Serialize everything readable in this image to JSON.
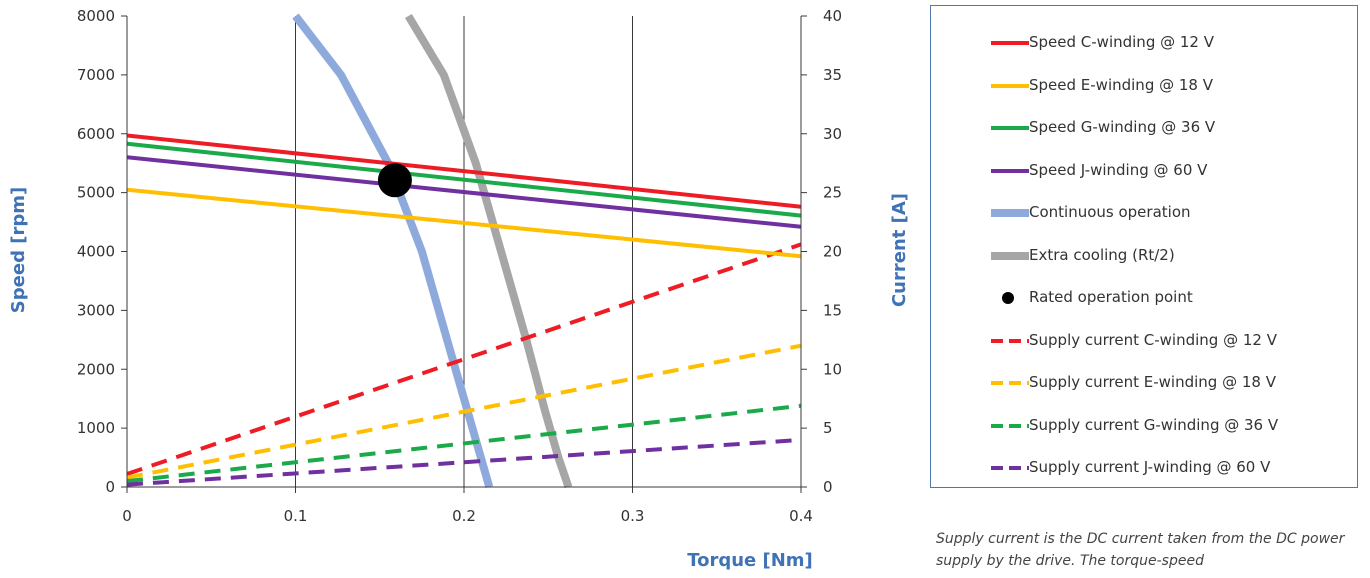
{
  "chart_data": {
    "type": "line",
    "xlabel": "Torque [Nm]",
    "ylabel": "Speed [rpm]",
    "y2label": "Current [A]",
    "xlim": [
      0,
      0.4
    ],
    "ylim": [
      0,
      8000
    ],
    "y2lim": [
      0,
      40
    ],
    "x_ticks": [
      "0",
      "0.1",
      "0.2",
      "0.3",
      "0.4"
    ],
    "y_ticks": [
      "0",
      "1000",
      "2000",
      "3000",
      "4000",
      "5000",
      "6000",
      "7000",
      "8000"
    ],
    "y2_ticks": [
      "0",
      "5",
      "10",
      "15",
      "20",
      "25",
      "30",
      "35",
      "40"
    ],
    "grid": "vertical",
    "legend_position": "right",
    "series": [
      {
        "name": "Speed C-winding @ 12 V",
        "axis": "left",
        "style": "solid",
        "color": "#ee1c25",
        "x": [
          0,
          0.4
        ],
        "y": [
          5970,
          4760
        ]
      },
      {
        "name": "Speed E-winding @ 18 V",
        "axis": "left",
        "style": "solid",
        "color": "#ffbf00",
        "x": [
          0,
          0.4
        ],
        "y": [
          5050,
          3920
        ]
      },
      {
        "name": "Speed G-winding @ 36 V",
        "axis": "left",
        "style": "solid",
        "color": "#1aaa4a",
        "x": [
          0,
          0.4
        ],
        "y": [
          5830,
          4610
        ]
      },
      {
        "name": "Speed J-winding @ 60 V",
        "axis": "left",
        "style": "solid",
        "color": "#7030a0",
        "x": [
          0,
          0.4
        ],
        "y": [
          5600,
          4420
        ]
      },
      {
        "name": "Continuous operation",
        "axis": "left",
        "style": "thick",
        "color": "#8eaadc",
        "x": [
          0.1,
          0.127,
          0.155,
          0.175,
          0.19,
          0.2,
          0.208,
          0.215
        ],
        "y": [
          8000,
          7000,
          5500,
          4000,
          2500,
          1500,
          700,
          0
        ]
      },
      {
        "name": "Extra cooling (Rt/2)",
        "axis": "left",
        "style": "thick",
        "color": "#a6a6a6",
        "x": [
          0.167,
          0.188,
          0.207,
          0.222,
          0.237,
          0.248,
          0.256,
          0.262
        ],
        "y": [
          8000,
          7000,
          5500,
          4000,
          2500,
          1300,
          500,
          0
        ]
      },
      {
        "name": "Rated operation point",
        "axis": "left",
        "style": "point",
        "color": "#000000",
        "x": [
          0.159
        ],
        "y": [
          5210
        ]
      },
      {
        "name": "Supply current C-winding @ 12 V",
        "axis": "right",
        "style": "dashed",
        "color": "#ee1c25",
        "x": [
          0,
          0.4
        ],
        "y": [
          1.1,
          20.6
        ]
      },
      {
        "name": "Supply current E-winding @ 18 V",
        "axis": "right",
        "style": "dashed",
        "color": "#ffbf00",
        "x": [
          0,
          0.4
        ],
        "y": [
          0.8,
          12.0
        ]
      },
      {
        "name": "Supply current G-winding @ 36 V",
        "axis": "right",
        "style": "dashed",
        "color": "#1aaa4a",
        "x": [
          0,
          0.4
        ],
        "y": [
          0.5,
          6.9
        ]
      },
      {
        "name": "Supply current J-winding @ 60 V",
        "axis": "right",
        "style": "dashed",
        "color": "#7030a0",
        "x": [
          0,
          0.4
        ],
        "y": [
          0.2,
          4.0
        ]
      }
    ]
  },
  "footnote": "Supply current is the DC current taken from the DC power supply by the drive. The torque-speed"
}
